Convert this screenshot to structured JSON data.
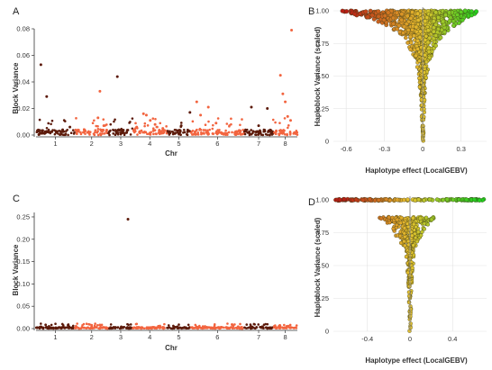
{
  "colors": {
    "dark_chrom": "#5c1a0a",
    "light_chrom": "#f2643f",
    "neg_effect": "#b81d14",
    "mid_effect": "#e5c22e",
    "pos_effect": "#22d11e",
    "point_stroke": "#3a3a1a"
  },
  "chart_data": [
    {
      "panel": "A",
      "type": "scatter",
      "title": "",
      "xlabel": "Chr",
      "ylabel": "Block Variance",
      "x_ticks": [
        "1",
        "2",
        "3",
        "4",
        "5",
        "6",
        "7",
        "8"
      ],
      "chromosome_spans": [
        [
          0,
          80
        ],
        [
          80,
          150
        ],
        [
          150,
          200
        ],
        [
          200,
          270
        ],
        [
          270,
          320
        ],
        [
          320,
          430
        ],
        [
          430,
          490
        ],
        [
          490,
          540
        ]
      ],
      "x_range": [
        0,
        540
      ],
      "y_ticks": [
        "0.00",
        "0.02",
        "0.04",
        "0.06",
        "0.08"
      ],
      "ylim": [
        0,
        0.08
      ],
      "grid": false,
      "highlight_points": [
        {
          "x": 10,
          "y": 0.053
        },
        {
          "x": 22,
          "y": 0.029
        },
        {
          "x": 55,
          "y": 0.004
        },
        {
          "x": 70,
          "y": 0.006
        },
        {
          "x": 100,
          "y": 0.004
        },
        {
          "x": 128,
          "y": 0.013
        },
        {
          "x": 132,
          "y": 0.033
        },
        {
          "x": 140,
          "y": 0.007
        },
        {
          "x": 168,
          "y": 0.044
        },
        {
          "x": 178,
          "y": 0.003
        },
        {
          "x": 208,
          "y": 0.006
        },
        {
          "x": 222,
          "y": 0.016
        },
        {
          "x": 228,
          "y": 0.015
        },
        {
          "x": 236,
          "y": 0.011
        },
        {
          "x": 246,
          "y": 0.008
        },
        {
          "x": 262,
          "y": 0.005
        },
        {
          "x": 300,
          "y": 0.007
        },
        {
          "x": 318,
          "y": 0.017
        },
        {
          "x": 332,
          "y": 0.025
        },
        {
          "x": 340,
          "y": 0.015
        },
        {
          "x": 356,
          "y": 0.021
        },
        {
          "x": 372,
          "y": 0.009
        },
        {
          "x": 445,
          "y": 0.021
        },
        {
          "x": 460,
          "y": 0.007
        },
        {
          "x": 478,
          "y": 0.02
        },
        {
          "x": 505,
          "y": 0.045
        },
        {
          "x": 510,
          "y": 0.031
        },
        {
          "x": 515,
          "y": 0.025
        },
        {
          "x": 520,
          "y": 0.014
        },
        {
          "x": 526,
          "y": 0.011
        },
        {
          "x": 528,
          "y": 0.079
        }
      ]
    },
    {
      "panel": "B",
      "type": "scatter",
      "title": "",
      "xlabel": "Haplotype effect (LocalGEBV)",
      "ylabel": "Haploblock Variance (scaled)",
      "x_ticks": [
        "-0.6",
        "-0.3",
        "0",
        "0.3"
      ],
      "x_tick_values": [
        -0.6,
        -0.3,
        0,
        0.3
      ],
      "xlim": [
        -0.7,
        0.5
      ],
      "y_ticks": [
        "0",
        "0.25",
        "0.50",
        "0.75",
        "1.00"
      ],
      "y_tick_values": [
        0,
        0.25,
        0.5,
        0.75,
        1.0
      ],
      "ylim": [
        0,
        1.0
      ],
      "grid": true,
      "x_extent_at_top": [
        -0.65,
        0.47
      ],
      "x_extent_at_bottom": [
        -0.015,
        0.015
      ]
    },
    {
      "panel": "C",
      "type": "scatter",
      "title": "",
      "xlabel": "Chr",
      "ylabel": "Block Variance",
      "x_ticks": [
        "1",
        "2",
        "3",
        "4",
        "5",
        "6",
        "7",
        "8"
      ],
      "chromosome_spans": [
        [
          0,
          80
        ],
        [
          80,
          150
        ],
        [
          150,
          200
        ],
        [
          200,
          270
        ],
        [
          270,
          320
        ],
        [
          320,
          430
        ],
        [
          430,
          490
        ],
        [
          490,
          540
        ]
      ],
      "x_range": [
        0,
        540
      ],
      "y_ticks": [
        "0.00",
        "0.05",
        "0.10",
        "0.15",
        "0.20",
        "0.25"
      ],
      "ylim": [
        0,
        0.26
      ],
      "grid": false,
      "highlight_points": [
        {
          "x": 10,
          "y": 0.004
        },
        {
          "x": 115,
          "y": 0.004
        },
        {
          "x": 132,
          "y": 0.008
        },
        {
          "x": 176,
          "y": 0.003
        },
        {
          "x": 190,
          "y": 0.245
        },
        {
          "x": 292,
          "y": 0.004
        },
        {
          "x": 405,
          "y": 0.009
        },
        {
          "x": 502,
          "y": 0.005
        }
      ]
    },
    {
      "panel": "D",
      "type": "scatter",
      "title": "",
      "xlabel": "Haplotype effect (LocalGEBV)",
      "ylabel": "Haploblock Variance (scaled)",
      "x_ticks": [
        "-0.4",
        "0",
        "0.4"
      ],
      "x_tick_values": [
        -0.4,
        0,
        0.4
      ],
      "xlim": [
        -0.72,
        0.72
      ],
      "y_ticks": [
        "0",
        "0.25",
        "0.50",
        "0.75",
        "1.00"
      ],
      "y_tick_values": [
        0,
        0.25,
        0.5,
        0.75,
        1.0
      ],
      "ylim": [
        0,
        1.0
      ],
      "grid": true,
      "top_row": {
        "y": 1.0,
        "x_range": [
          -0.7,
          0.7
        ]
      },
      "x_extent_at_0_87": [
        -0.3,
        0.25
      ],
      "x_extent_at_bottom": [
        -0.01,
        0.01
      ]
    }
  ]
}
